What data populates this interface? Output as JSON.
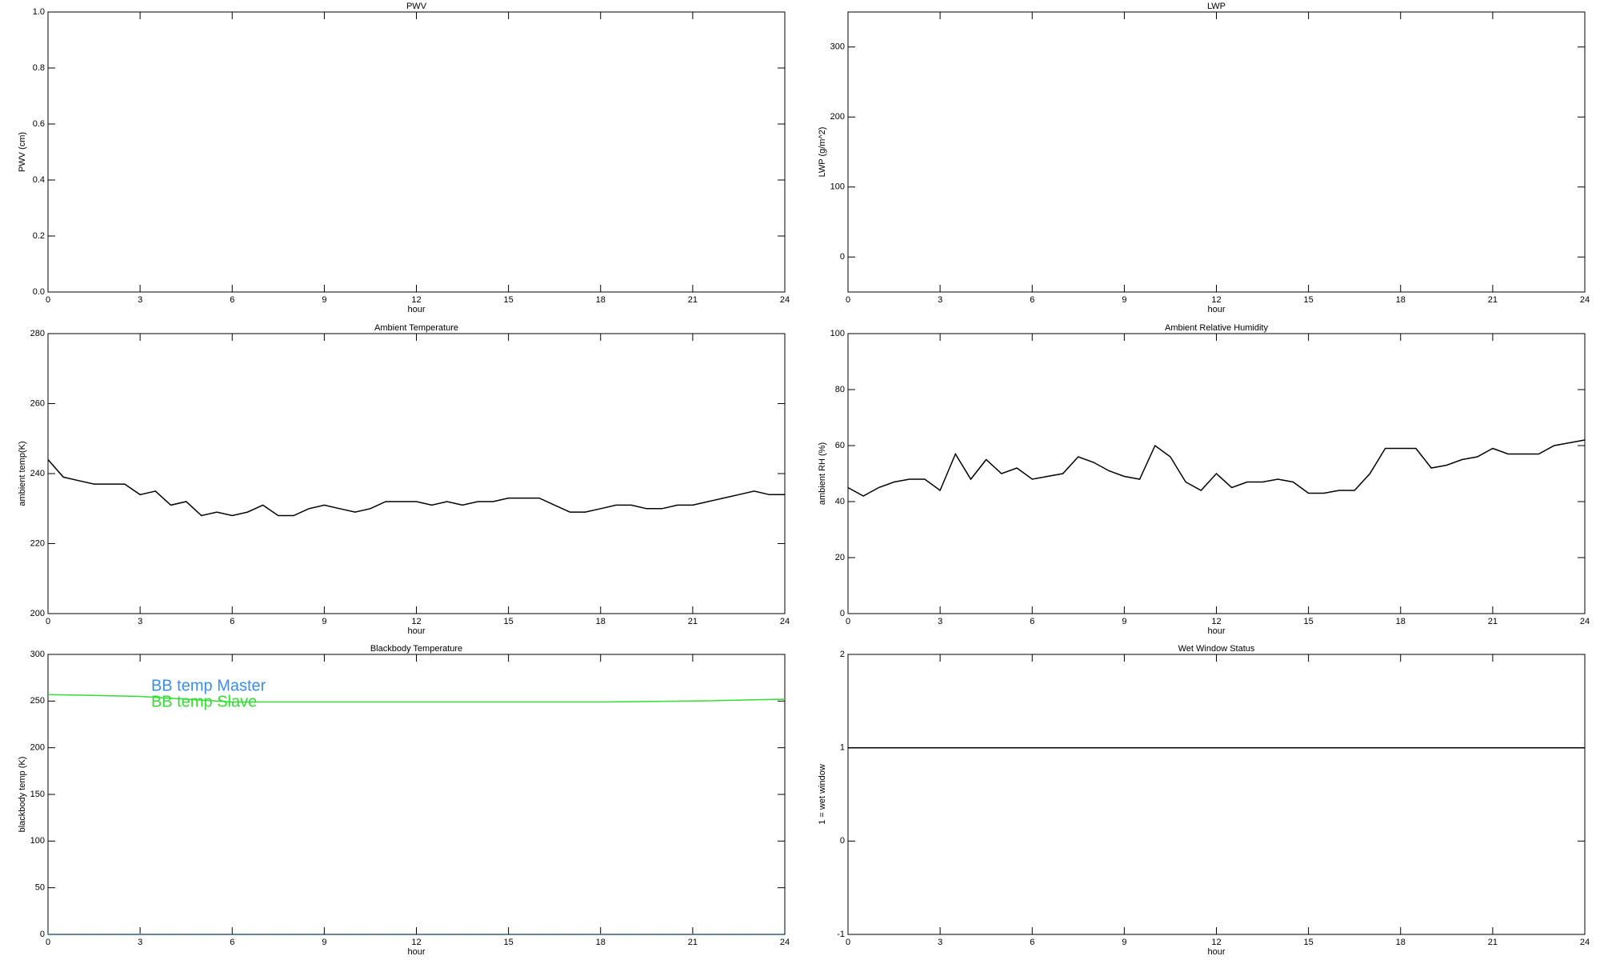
{
  "chart_data": [
    {
      "type": "line",
      "title": "PWV",
      "xlabel": "hour",
      "ylabel": "PWV (cm)",
      "xlim": [
        0,
        24
      ],
      "xticks": [
        0,
        3,
        6,
        9,
        12,
        15,
        18,
        21,
        24
      ],
      "ylim": [
        0,
        1
      ],
      "yticks": [
        {
          "value": 0,
          "label": "0.0"
        },
        0.2,
        0.4,
        0.6,
        0.8,
        {
          "value": 1,
          "label": "1.0"
        }
      ]
    },
    {
      "type": "line",
      "title": "LWP",
      "xlabel": "hour",
      "ylabel": "LWP (g/m^2)",
      "xlim": [
        0,
        24
      ],
      "xticks": [
        0,
        3,
        6,
        9,
        12,
        15,
        18,
        21,
        24
      ],
      "ylim": [
        -50,
        350
      ],
      "yticks": [
        0,
        100,
        200,
        300
      ]
    },
    {
      "type": "line",
      "title": "Ambient Temperature",
      "xlabel": "hour",
      "ylabel": "ambient temp(K)",
      "xlim": [
        0,
        24
      ],
      "xticks": [
        0,
        3,
        6,
        9,
        12,
        15,
        18,
        21,
        24
      ],
      "ylim": [
        200,
        280
      ],
      "yticks": [
        200,
        220,
        240,
        260,
        280
      ],
      "x": [
        0,
        0.5,
        1,
        1.5,
        2,
        2.5,
        3,
        3.5,
        4,
        4.5,
        5,
        5.5,
        6,
        6.5,
        7,
        7.5,
        8,
        8.5,
        9,
        9.5,
        10,
        10.5,
        11,
        11.5,
        12,
        12.5,
        13,
        13.5,
        14,
        14.5,
        15,
        15.5,
        16,
        16.5,
        17,
        17.5,
        18,
        18.5,
        19,
        19.5,
        20,
        20.5,
        21,
        21.5,
        22,
        22.5,
        23,
        23.5,
        24
      ],
      "series": [
        {
          "color": "#000000",
          "values": [
            244,
            239,
            238,
            237,
            237,
            237,
            234,
            235,
            231,
            232,
            228,
            229,
            228,
            229,
            231,
            228,
            228,
            230,
            231,
            230,
            229,
            230,
            232,
            232,
            232,
            231,
            232,
            231,
            232,
            232,
            233,
            233,
            233,
            231,
            229,
            229,
            230,
            231,
            231,
            230,
            230,
            231,
            231,
            232,
            233,
            234,
            235,
            234,
            234
          ]
        }
      ]
    },
    {
      "type": "line",
      "title": "Ambient Relative Humidity",
      "xlabel": "hour",
      "ylabel": "ambient RH (%)",
      "xlim": [
        0,
        24
      ],
      "xticks": [
        0,
        3,
        6,
        9,
        12,
        15,
        18,
        21,
        24
      ],
      "ylim": [
        0,
        100
      ],
      "yticks": [
        0,
        20,
        40,
        60,
        80,
        100
      ],
      "x": [
        0,
        0.5,
        1,
        1.5,
        2,
        2.5,
        3,
        3.5,
        4,
        4.5,
        5,
        5.5,
        6,
        6.5,
        7,
        7.5,
        8,
        8.5,
        9,
        9.5,
        10,
        10.5,
        11,
        11.5,
        12,
        12.5,
        13,
        13.5,
        14,
        14.5,
        15,
        15.5,
        16,
        16.5,
        17,
        17.5,
        18,
        18.5,
        19,
        19.5,
        20,
        20.5,
        21,
        21.5,
        22,
        22.5,
        23,
        23.5,
        24
      ],
      "series": [
        {
          "color": "#000000",
          "values": [
            45,
            42,
            45,
            47,
            48,
            48,
            44,
            57,
            48,
            55,
            50,
            52,
            48,
            49,
            50,
            56,
            54,
            51,
            49,
            48,
            60,
            56,
            47,
            44,
            50,
            45,
            47,
            47,
            48,
            47,
            43,
            43,
            44,
            44,
            50,
            59,
            59,
            59,
            52,
            53,
            55,
            56,
            59,
            57,
            57,
            57,
            60,
            61,
            62
          ]
        }
      ]
    },
    {
      "type": "line",
      "title": "Blackbody Temperature",
      "xlabel": "hour",
      "ylabel": "blackbody temp (K)",
      "xlim": [
        0,
        24
      ],
      "xticks": [
        0,
        3,
        6,
        9,
        12,
        15,
        18,
        21,
        24
      ],
      "ylim": [
        0,
        300
      ],
      "yticks": [
        0,
        50,
        100,
        150,
        200,
        250,
        300
      ],
      "legend": "upper left",
      "x": [
        0,
        3,
        6,
        9,
        12,
        15,
        18,
        21,
        24
      ],
      "series": [
        {
          "name": "BB temp Master",
          "color": "#3a8ee6",
          "linestyle": "dotted",
          "values": [
            0,
            0,
            0,
            0,
            0,
            0,
            0,
            0,
            0
          ]
        },
        {
          "name": "BB temp Slave",
          "color": "#33dd33",
          "values": [
            257,
            255,
            249,
            249,
            249,
            249,
            249,
            250,
            252
          ]
        }
      ]
    },
    {
      "type": "line",
      "title": "Wet Window Status",
      "xlabel": "hour",
      "ylabel": "1 = wet window",
      "xlim": [
        0,
        24
      ],
      "xticks": [
        0,
        3,
        6,
        9,
        12,
        15,
        18,
        21,
        24
      ],
      "ylim": [
        -1,
        2
      ],
      "yticks": [
        -1,
        0,
        1,
        2
      ],
      "x": [
        0,
        24
      ],
      "series": [
        {
          "color": "#000000",
          "values": [
            1,
            1
          ]
        }
      ]
    }
  ]
}
